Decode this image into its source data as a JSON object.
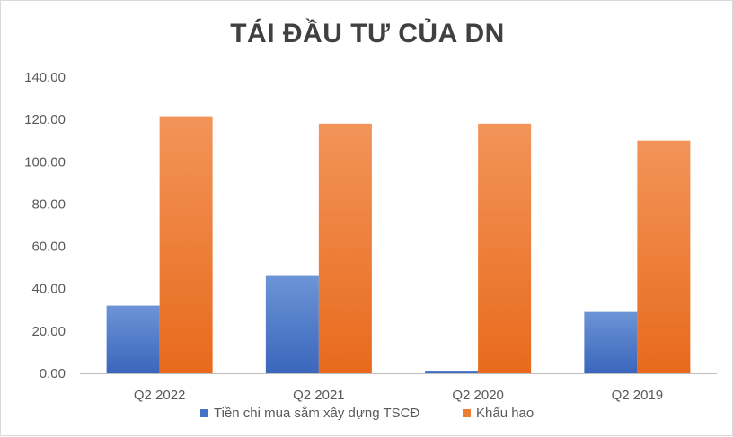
{
  "chart_data": {
    "type": "bar",
    "title": "TÁI ĐẦU TƯ CỦA DN",
    "categories": [
      "Q2 2022",
      "Q2 2021",
      "Q2 2020",
      "Q2 2019"
    ],
    "series": [
      {
        "name": "Tiền chi mua sắm xây dựng TSCĐ",
        "values": [
          32.0,
          46.0,
          1.2,
          29.0
        ],
        "color": "#4472c4"
      },
      {
        "name": "Khấu hao",
        "values": [
          121.5,
          118.0,
          118.0,
          110.0
        ],
        "color": "#ed7d31"
      }
    ],
    "ylim": [
      0,
      140
    ],
    "yticks": [
      "0.00",
      "20.00",
      "40.00",
      "60.00",
      "80.00",
      "100.00",
      "120.00",
      "140.00"
    ],
    "grid": false,
    "legend_position": "bottom"
  }
}
